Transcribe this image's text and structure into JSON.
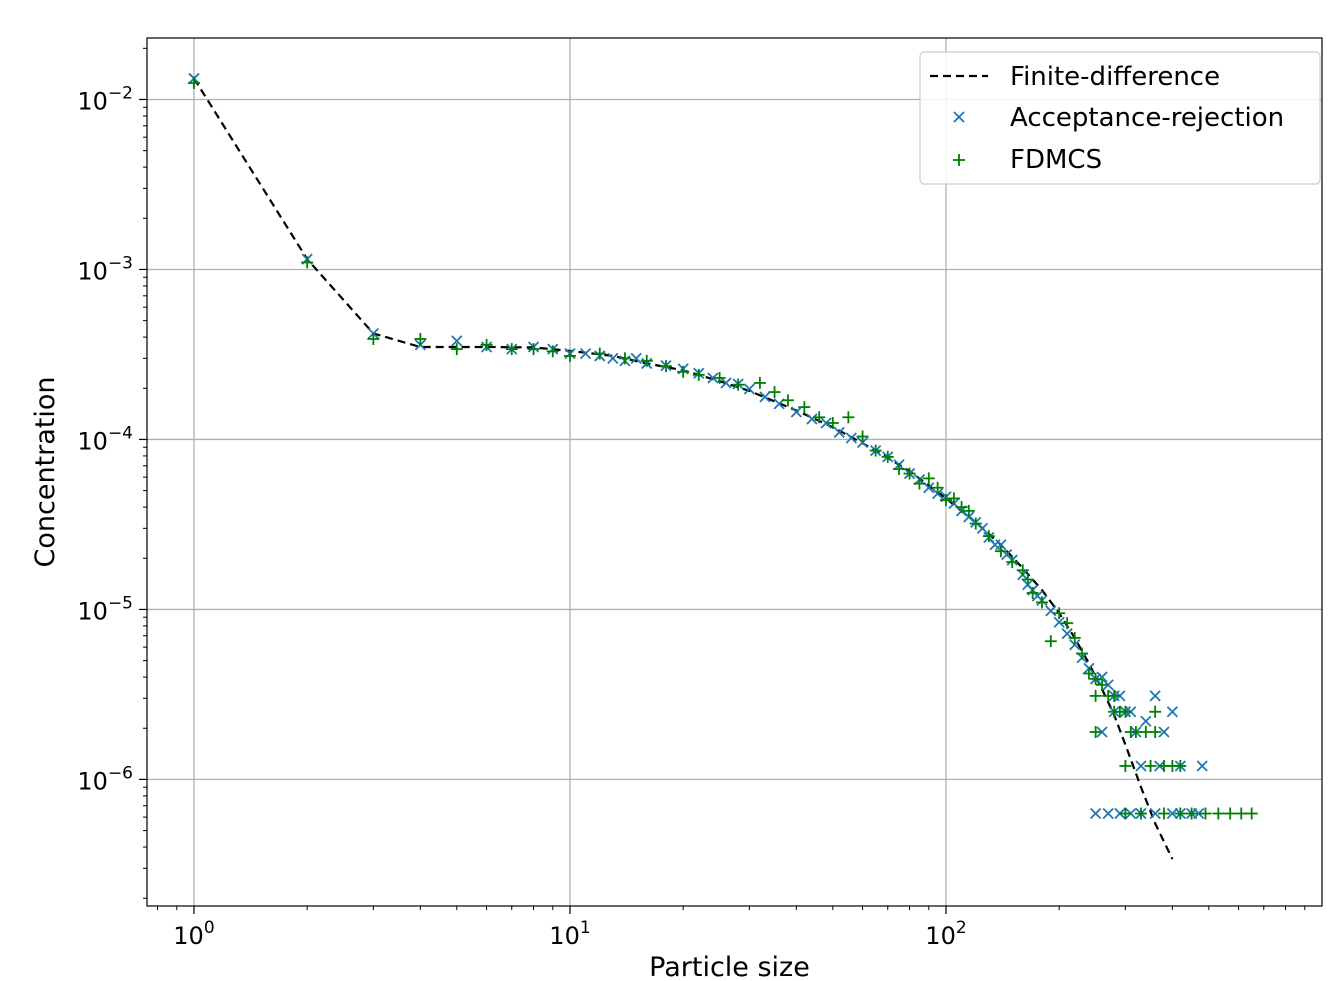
{
  "chart_data": {
    "type": "scatter",
    "xlabel": "Particle size",
    "ylabel": "Concentration",
    "xscale": "log",
    "yscale": "log",
    "xlim": [
      0.75,
      1000
    ],
    "ylim": [
      1.8e-07,
      0.023
    ],
    "grid": true,
    "legend_position": "top-right",
    "x_ticks": [
      {
        "value": 1,
        "base": "10",
        "exp": "0"
      },
      {
        "value": 10,
        "base": "10",
        "exp": "1"
      },
      {
        "value": 100,
        "base": "10",
        "exp": "2"
      }
    ],
    "y_ticks": [
      {
        "value": 0.01,
        "base": "10",
        "exp": "−2"
      },
      {
        "value": 0.001,
        "base": "10",
        "exp": "−3"
      },
      {
        "value": 0.0001,
        "base": "10",
        "exp": "−4"
      },
      {
        "value": 1e-05,
        "base": "10",
        "exp": "−5"
      },
      {
        "value": 1e-06,
        "base": "10",
        "exp": "−6"
      }
    ],
    "series": [
      {
        "name": "Finite-difference",
        "style": "dashed-line",
        "color": "#000000",
        "x": [
          1,
          2,
          3,
          4,
          5,
          6,
          8,
          10,
          13,
          16,
          20,
          25,
          30,
          40,
          50,
          60,
          70,
          80,
          100,
          120,
          140,
          160,
          180,
          200,
          220,
          240,
          260,
          280,
          300,
          330,
          360,
          400
        ],
        "y": [
          0.0133,
          0.00115,
          0.00042,
          0.00035,
          0.00035,
          0.00035,
          0.000348,
          0.000332,
          0.00031,
          0.00028,
          0.000255,
          0.00022,
          0.000193,
          0.000148,
          0.000118,
          9.5e-05,
          7.8e-05,
          6.5e-05,
          4.5e-05,
          3.25e-05,
          2.4e-05,
          1.75e-05,
          1.3e-05,
          9.5e-06,
          6.8e-06,
          4.8e-06,
          3.4e-06,
          2.4e-06,
          1.6e-06,
          9e-07,
          5.5e-07,
          3.4e-07
        ]
      },
      {
        "name": "Acceptance-rejection",
        "marker": "x",
        "color": "#1f77b4",
        "x": [
          1,
          2,
          3,
          4,
          5,
          6,
          7,
          8,
          9,
          10,
          11,
          12,
          13,
          14,
          15,
          16,
          18,
          20,
          22,
          24,
          26,
          28,
          30,
          33,
          36,
          40,
          44,
          48,
          52,
          56,
          60,
          65,
          70,
          75,
          80,
          85,
          90,
          95,
          100,
          105,
          110,
          115,
          120,
          125,
          130,
          135,
          140,
          145,
          150,
          160,
          165,
          170,
          175,
          180,
          190,
          200,
          210,
          220,
          230,
          240,
          250,
          260,
          270,
          280,
          290,
          300,
          310,
          320,
          340,
          360,
          380,
          400,
          420,
          450,
          480,
          260,
          280,
          300,
          330,
          370,
          420,
          250,
          270,
          290,
          310,
          330,
          360,
          400,
          470
        ],
        "y": [
          0.0133,
          0.00115,
          0.00042,
          0.00036,
          0.00038,
          0.00035,
          0.00034,
          0.00035,
          0.00034,
          0.00032,
          0.00032,
          0.00031,
          0.0003,
          0.00029,
          0.0003,
          0.00028,
          0.000272,
          0.00026,
          0.000245,
          0.00023,
          0.000215,
          0.000212,
          0.000198,
          0.000178,
          0.000162,
          0.000145,
          0.000132,
          0.000125,
          0.00011,
          0.000102,
          9.6e-05,
          8.6e-05,
          7.9e-05,
          7.1e-05,
          6.3e-05,
          5.8e-05,
          5.2e-05,
          4.8e-05,
          4.6e-05,
          4.2e-05,
          3.8e-05,
          3.5e-05,
          3.25e-05,
          3e-05,
          2.65e-05,
          2.4e-05,
          2.4e-05,
          2.1e-05,
          1.95e-05,
          1.6e-05,
          1.4e-05,
          1.3e-05,
          1.2e-05,
          1.13e-05,
          9.8e-06,
          8.4e-06,
          7.2e-06,
          6.2e-06,
          5.2e-06,
          4.5e-06,
          3.9e-06,
          4e-06,
          3.6e-06,
          3.1e-06,
          3.1e-06,
          2.5e-06,
          2.5e-06,
          1.9e-06,
          2.2e-06,
          3.1e-06,
          1.9e-06,
          2.5e-06,
          6.3e-07,
          6.3e-07,
          1.2e-06,
          1.9e-06,
          2.5e-06,
          2.5e-06,
          1.2e-06,
          1.2e-06,
          1.2e-06,
          6.3e-07,
          6.3e-07,
          6.3e-07,
          6.3e-07,
          6.3e-07,
          6.3e-07,
          6.3e-07,
          6.3e-07
        ]
      },
      {
        "name": "FDMCS",
        "marker": "+",
        "color": "#008000",
        "x": [
          1,
          2,
          3,
          4,
          5,
          6,
          7,
          8,
          9,
          10,
          12,
          14,
          16,
          18,
          20,
          22,
          25,
          28,
          32,
          35,
          38,
          42,
          46,
          50,
          55,
          60,
          65,
          70,
          75,
          80,
          85,
          90,
          95,
          100,
          105,
          110,
          115,
          120,
          130,
          140,
          150,
          160,
          165,
          170,
          180,
          190,
          200,
          210,
          220,
          230,
          240,
          250,
          260,
          270,
          280,
          290,
          300,
          320,
          340,
          360,
          380,
          400,
          420,
          450,
          490,
          530,
          570,
          610,
          650,
          250,
          280,
          310,
          350,
          250,
          300,
          360,
          420,
          300,
          330,
          380
        ],
        "y": [
          0.0125,
          0.0011,
          0.00039,
          0.00039,
          0.00034,
          0.00036,
          0.00034,
          0.00034,
          0.00033,
          0.00031,
          0.00032,
          0.0003,
          0.00029,
          0.00027,
          0.00025,
          0.00024,
          0.00023,
          0.00021,
          0.000215,
          0.00019,
          0.00017,
          0.000155,
          0.000135,
          0.000125,
          0.000135,
          0.000104,
          8.6e-05,
          7.9e-05,
          6.7e-05,
          6.3e-05,
          5.5e-05,
          5.9e-05,
          5.2e-05,
          4.4e-05,
          4.5e-05,
          4e-05,
          3.8e-05,
          3.2e-05,
          2.7e-05,
          2.2e-05,
          1.9e-05,
          1.7e-05,
          1.5e-05,
          1.25e-05,
          1.1e-05,
          6.5e-06,
          9.5e-06,
          8.3e-06,
          6.8e-06,
          5.5e-06,
          4.2e-06,
          3.9e-06,
          3.6e-06,
          3.1e-06,
          3.1e-06,
          2.5e-06,
          2.5e-06,
          1.9e-06,
          1.9e-06,
          1.9e-06,
          1.2e-06,
          1.2e-06,
          6.3e-07,
          6.3e-07,
          6.3e-07,
          6.3e-07,
          6.3e-07,
          6.3e-07,
          6.3e-07,
          1.9e-06,
          2.5e-06,
          1.9e-06,
          1.2e-06,
          3.1e-06,
          1.2e-06,
          2.5e-06,
          1.2e-06,
          6.3e-07,
          6.3e-07,
          6.3e-07
        ]
      }
    ]
  }
}
